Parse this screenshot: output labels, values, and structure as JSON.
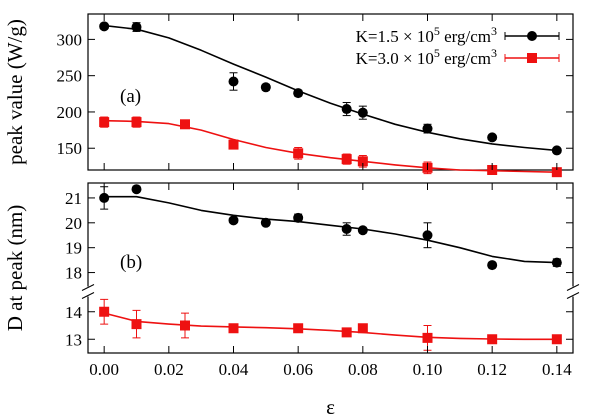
{
  "chart_data": {
    "type": "scatter",
    "xlabel": "ε",
    "x_ticks": [
      "0.00",
      "0.02",
      "0.04",
      "0.06",
      "0.08",
      "0.10",
      "0.12",
      "0.14"
    ],
    "xlim": [
      -0.005,
      0.145
    ],
    "grid": false,
    "legend": {
      "placement": "top-right",
      "entries": [
        {
          "prefix": "K=1.5 × 10",
          "exp": "5",
          "mid": " erg/cm",
          "exp2": "3",
          "color": "#000000",
          "marker": "circle"
        },
        {
          "prefix": "K=3.0 × 10",
          "exp": "5",
          "mid": " erg/cm",
          "exp2": "3",
          "color": "#ee1111",
          "marker": "square"
        }
      ]
    },
    "panels": [
      {
        "label": "(a)",
        "ylabel": "peak value (W/g)",
        "ylim": [
          120,
          335
        ],
        "y_ticks": [
          150,
          200,
          250,
          300
        ],
        "series": [
          {
            "color": "#000000",
            "marker": "circle",
            "x": [
              0.0,
              0.01,
              0.04,
              0.05,
              0.06,
              0.075,
              0.08,
              0.1,
              0.12,
              0.14
            ],
            "y": [
              318,
              317,
              242,
              234,
              226,
              204,
              199,
              177,
              165,
              147
            ],
            "err": [
              3,
              6,
              12,
              4,
              4,
              9,
              9,
              6,
              3,
              3
            ],
            "fit": [
              [
                0.0,
                319
              ],
              [
                0.01,
                314
              ],
              [
                0.02,
                302
              ],
              [
                0.03,
                285
              ],
              [
                0.04,
                266
              ],
              [
                0.05,
                248
              ],
              [
                0.06,
                229
              ],
              [
                0.07,
                212
              ],
              [
                0.08,
                197
              ],
              [
                0.09,
                183
              ],
              [
                0.1,
                172
              ],
              [
                0.11,
                163
              ],
              [
                0.12,
                156
              ],
              [
                0.13,
                151
              ],
              [
                0.14,
                147
              ]
            ]
          },
          {
            "color": "#ee1111",
            "marker": "square",
            "x": [
              0.0,
              0.01,
              0.025,
              0.04,
              0.06,
              0.075,
              0.08,
              0.1,
              0.12,
              0.14
            ],
            "y": [
              186,
              186,
              183,
              155,
              143,
              135,
              132,
              123,
              120,
              117
            ],
            "err": [
              7,
              7,
              4,
              4,
              8,
              7,
              8,
              8,
              3,
              2
            ],
            "fit": [
              [
                0.0,
                188
              ],
              [
                0.01,
                187
              ],
              [
                0.02,
                184
              ],
              [
                0.03,
                175
              ],
              [
                0.04,
                162
              ],
              [
                0.05,
                151
              ],
              [
                0.06,
                143
              ],
              [
                0.07,
                137
              ],
              [
                0.08,
                132
              ],
              [
                0.09,
                127
              ],
              [
                0.1,
                123
              ],
              [
                0.11,
                120
              ],
              [
                0.12,
                119
              ],
              [
                0.13,
                118
              ],
              [
                0.14,
                117
              ]
            ]
          }
        ]
      },
      {
        "label": "(b)",
        "ylabel": "D at peak (nm)",
        "ylim_upper": [
          17.5,
          21.6
        ],
        "ylim_lower": [
          12.5,
          14.5
        ],
        "y_ticks_upper": [
          18,
          19,
          20,
          21
        ],
        "y_ticks_lower": [
          13,
          14
        ],
        "series": [
          {
            "color": "#000000",
            "marker": "circle",
            "x": [
              0.0,
              0.01,
              0.04,
              0.05,
              0.06,
              0.075,
              0.08,
              0.1,
              0.12,
              0.14
            ],
            "y": [
              21.0,
              21.35,
              20.1,
              20.0,
              20.2,
              19.75,
              19.7,
              19.5,
              18.3,
              18.4
            ],
            "err": [
              0.45,
              0.1,
              0.1,
              0.1,
              0.15,
              0.25,
              0.1,
              0.5,
              0.1,
              0.15
            ],
            "fit": [
              [
                0.0,
                21.05
              ],
              [
                0.01,
                21.05
              ],
              [
                0.02,
                20.8
              ],
              [
                0.03,
                20.5
              ],
              [
                0.04,
                20.3
              ],
              [
                0.05,
                20.15
              ],
              [
                0.06,
                20.05
              ],
              [
                0.07,
                19.9
              ],
              [
                0.08,
                19.75
              ],
              [
                0.09,
                19.55
              ],
              [
                0.1,
                19.3
              ],
              [
                0.11,
                19.0
              ],
              [
                0.12,
                18.65
              ],
              [
                0.13,
                18.45
              ],
              [
                0.14,
                18.4
              ]
            ]
          },
          {
            "color": "#ee1111",
            "marker": "square",
            "x": [
              0.0,
              0.01,
              0.025,
              0.04,
              0.06,
              0.075,
              0.08,
              0.1,
              0.12,
              0.14
            ],
            "y": [
              14.0,
              13.55,
              13.5,
              13.4,
              13.4,
              13.25,
              13.4,
              13.05,
              13.0,
              13.0
            ],
            "err": [
              0.45,
              0.5,
              0.45,
              0.1,
              0.1,
              0.1,
              0.1,
              0.45,
              0.1,
              0.05
            ],
            "fit": [
              [
                0.0,
                13.95
              ],
              [
                0.01,
                13.65
              ],
              [
                0.02,
                13.55
              ],
              [
                0.03,
                13.48
              ],
              [
                0.04,
                13.45
              ],
              [
                0.05,
                13.42
              ],
              [
                0.06,
                13.38
              ],
              [
                0.07,
                13.32
              ],
              [
                0.08,
                13.25
              ],
              [
                0.09,
                13.15
              ],
              [
                0.1,
                13.07
              ],
              [
                0.11,
                13.03
              ],
              [
                0.12,
                13.01
              ],
              [
                0.13,
                13.0
              ],
              [
                0.14,
                13.0
              ]
            ]
          }
        ]
      }
    ]
  }
}
